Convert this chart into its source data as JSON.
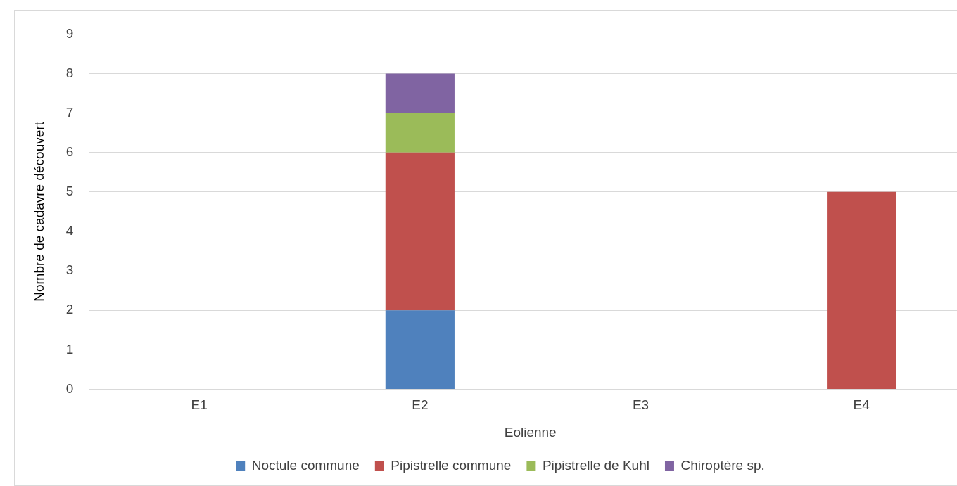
{
  "chart_data": {
    "type": "bar",
    "stacked": true,
    "xlabel": "Eolienne",
    "ylabel": "Nombre de cadavre découvert",
    "categories": [
      "E1",
      "E2",
      "E3",
      "E4"
    ],
    "series": [
      {
        "name": "Noctule commune",
        "color": "#4f81bd",
        "values": [
          0,
          2,
          0,
          0
        ]
      },
      {
        "name": "Pipistrelle commune",
        "color": "#c0504d",
        "values": [
          0,
          4,
          0,
          5
        ]
      },
      {
        "name": "Pipistrelle de Kuhl",
        "color": "#9bbb59",
        "values": [
          0,
          1,
          0,
          0
        ]
      },
      {
        "name": "Chiroptère sp.",
        "color": "#8064a2",
        "values": [
          0,
          1,
          0,
          0
        ]
      }
    ],
    "ylim": [
      0,
      9
    ],
    "yticks": [
      0,
      1,
      2,
      3,
      4,
      5,
      6,
      7,
      8,
      9
    ],
    "grid": "y",
    "legend": "bottom"
  }
}
